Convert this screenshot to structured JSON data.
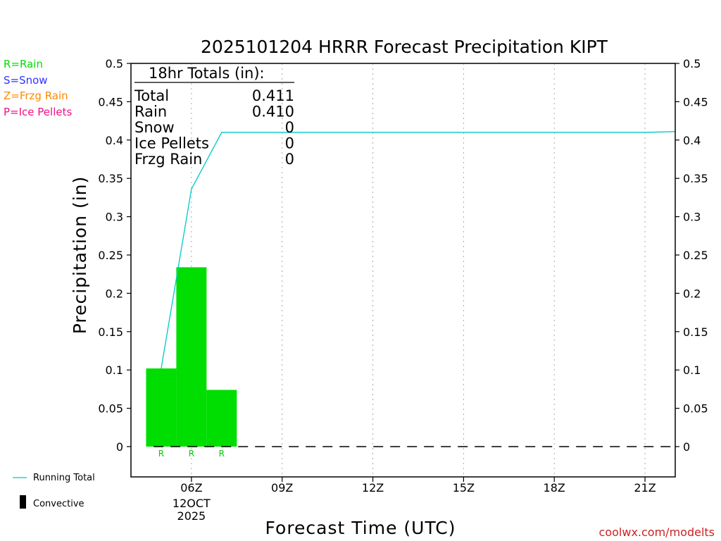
{
  "chart_data": {
    "type": "bar",
    "title": "2025101204 HRRR Forecast Precipitation KIPT",
    "xlabel": "Forecast Time (UTC)",
    "ylabel": "Precipitation (in)",
    "ylim": [
      -0.04,
      0.5
    ],
    "yticks": [
      "0.5",
      "0.45",
      "0.4",
      "0.35",
      "0.3",
      "0.25",
      "0.2",
      "0.15",
      "0.1",
      "0.05",
      "0"
    ],
    "xlim_hours": [
      4.0,
      22.0
    ],
    "xticks": [
      {
        "hour": 6,
        "label": "06Z",
        "sub": [
          "12OCT",
          "2025"
        ]
      },
      {
        "hour": 9,
        "label": "09Z",
        "sub": []
      },
      {
        "hour": 12,
        "label": "12Z",
        "sub": []
      },
      {
        "hour": 15,
        "label": "15Z",
        "sub": []
      },
      {
        "hour": 18,
        "label": "18Z",
        "sub": []
      },
      {
        "hour": 21,
        "label": "21Z",
        "sub": []
      }
    ],
    "bars": [
      {
        "hour": 5,
        "value": 0.102,
        "type": "R"
      },
      {
        "hour": 6,
        "value": 0.234,
        "type": "R"
      },
      {
        "hour": 7,
        "value": 0.074,
        "type": "R"
      }
    ],
    "running_total": {
      "name": "Running Total",
      "hours": [
        5,
        6,
        7,
        21,
        22
      ],
      "values": [
        0.102,
        0.336,
        0.41,
        0.41,
        0.411
      ]
    },
    "convective": {
      "name": "Convective",
      "values": []
    },
    "colors": {
      "rain": "#00dd00",
      "snow": "#3333ff",
      "frzg_rain": "#ff8800",
      "ice_pellets": "#ee1188",
      "running_total": "#00c8c8",
      "grid": "#aaaaaa",
      "credit": "#cc2222"
    },
    "grid": "vertical dotted"
  },
  "legend": {
    "rain": "R=Rain",
    "snow": "S=Snow",
    "frzg": "Z=Frzg Rain",
    "ice": "P=Ice Pellets",
    "running_total": "Running Total",
    "convective": "Convective"
  },
  "totals": {
    "title": "18hr Totals (in):",
    "rows": [
      {
        "label": "Total",
        "value": "0.411"
      },
      {
        "label": "Rain",
        "value": "0.410"
      },
      {
        "label": "Snow",
        "value": "0"
      },
      {
        "label": "Ice Pellets",
        "value": "0"
      },
      {
        "label": "Frzg Rain",
        "value": "0"
      }
    ]
  },
  "credit": "coolwx.com/modelts"
}
